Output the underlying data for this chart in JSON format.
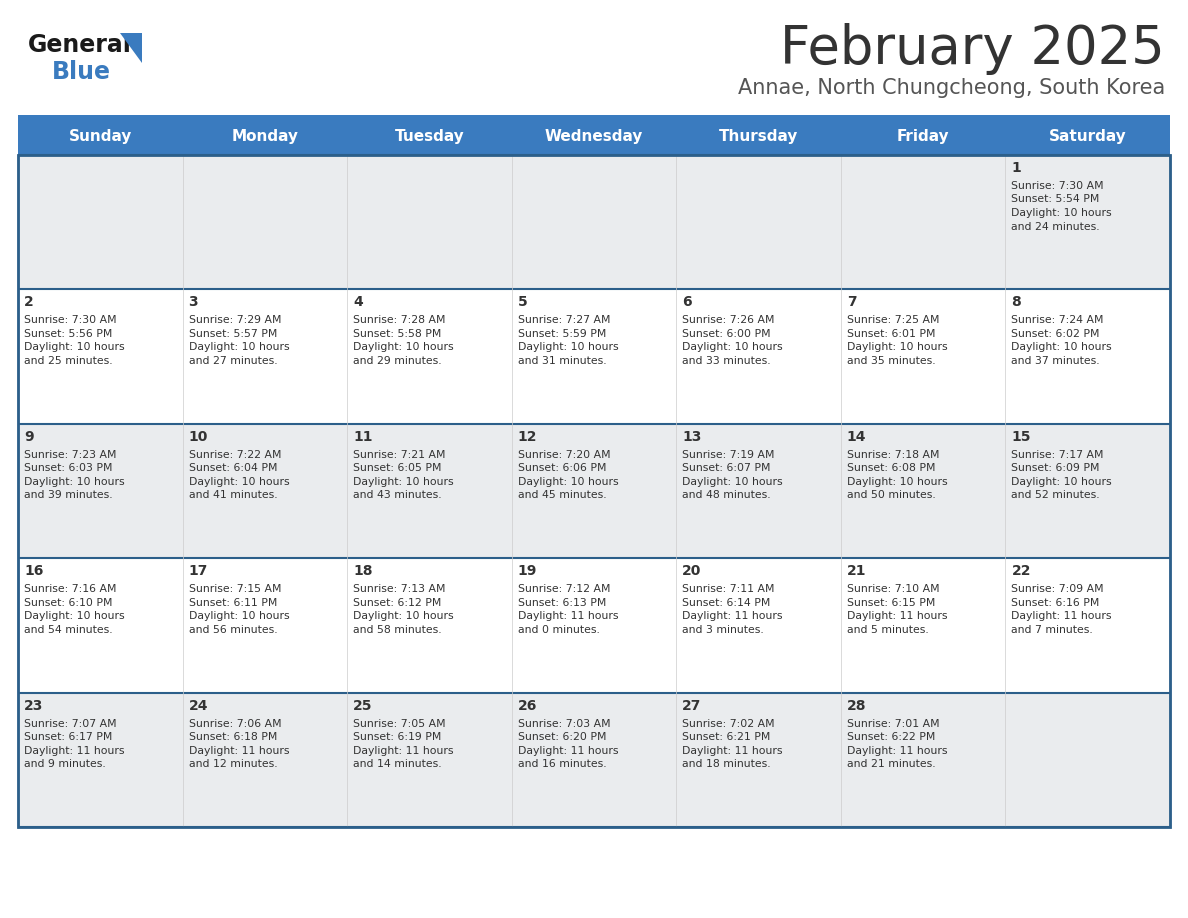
{
  "title": "February 2025",
  "subtitle": "Annae, North Chungcheong, South Korea",
  "header_bg": "#3A7BBF",
  "header_text": "#FFFFFF",
  "cell_bg_odd": "#EAECEE",
  "cell_bg_even": "#FFFFFF",
  "day_headers": [
    "Sunday",
    "Monday",
    "Tuesday",
    "Wednesday",
    "Thursday",
    "Friday",
    "Saturday"
  ],
  "row_border_color": "#2C5F8A",
  "col_border_color": "#CCCCCC",
  "outer_border_color": "#2C5F8A",
  "text_color": "#333333",
  "num_rows": 5,
  "days": [
    {
      "day": 1,
      "col": 6,
      "row": 0,
      "sunrise": "7:30 AM",
      "sunset": "5:54 PM",
      "daylight": "10 hours and 24 minutes."
    },
    {
      "day": 2,
      "col": 0,
      "row": 1,
      "sunrise": "7:30 AM",
      "sunset": "5:56 PM",
      "daylight": "10 hours and 25 minutes."
    },
    {
      "day": 3,
      "col": 1,
      "row": 1,
      "sunrise": "7:29 AM",
      "sunset": "5:57 PM",
      "daylight": "10 hours and 27 minutes."
    },
    {
      "day": 4,
      "col": 2,
      "row": 1,
      "sunrise": "7:28 AM",
      "sunset": "5:58 PM",
      "daylight": "10 hours and 29 minutes."
    },
    {
      "day": 5,
      "col": 3,
      "row": 1,
      "sunrise": "7:27 AM",
      "sunset": "5:59 PM",
      "daylight": "10 hours and 31 minutes."
    },
    {
      "day": 6,
      "col": 4,
      "row": 1,
      "sunrise": "7:26 AM",
      "sunset": "6:00 PM",
      "daylight": "10 hours and 33 minutes."
    },
    {
      "day": 7,
      "col": 5,
      "row": 1,
      "sunrise": "7:25 AM",
      "sunset": "6:01 PM",
      "daylight": "10 hours and 35 minutes."
    },
    {
      "day": 8,
      "col": 6,
      "row": 1,
      "sunrise": "7:24 AM",
      "sunset": "6:02 PM",
      "daylight": "10 hours and 37 minutes."
    },
    {
      "day": 9,
      "col": 0,
      "row": 2,
      "sunrise": "7:23 AM",
      "sunset": "6:03 PM",
      "daylight": "10 hours and 39 minutes."
    },
    {
      "day": 10,
      "col": 1,
      "row": 2,
      "sunrise": "7:22 AM",
      "sunset": "6:04 PM",
      "daylight": "10 hours and 41 minutes."
    },
    {
      "day": 11,
      "col": 2,
      "row": 2,
      "sunrise": "7:21 AM",
      "sunset": "6:05 PM",
      "daylight": "10 hours and 43 minutes."
    },
    {
      "day": 12,
      "col": 3,
      "row": 2,
      "sunrise": "7:20 AM",
      "sunset": "6:06 PM",
      "daylight": "10 hours and 45 minutes."
    },
    {
      "day": 13,
      "col": 4,
      "row": 2,
      "sunrise": "7:19 AM",
      "sunset": "6:07 PM",
      "daylight": "10 hours and 48 minutes."
    },
    {
      "day": 14,
      "col": 5,
      "row": 2,
      "sunrise": "7:18 AM",
      "sunset": "6:08 PM",
      "daylight": "10 hours and 50 minutes."
    },
    {
      "day": 15,
      "col": 6,
      "row": 2,
      "sunrise": "7:17 AM",
      "sunset": "6:09 PM",
      "daylight": "10 hours and 52 minutes."
    },
    {
      "day": 16,
      "col": 0,
      "row": 3,
      "sunrise": "7:16 AM",
      "sunset": "6:10 PM",
      "daylight": "10 hours and 54 minutes."
    },
    {
      "day": 17,
      "col": 1,
      "row": 3,
      "sunrise": "7:15 AM",
      "sunset": "6:11 PM",
      "daylight": "10 hours and 56 minutes."
    },
    {
      "day": 18,
      "col": 2,
      "row": 3,
      "sunrise": "7:13 AM",
      "sunset": "6:12 PM",
      "daylight": "10 hours and 58 minutes."
    },
    {
      "day": 19,
      "col": 3,
      "row": 3,
      "sunrise": "7:12 AM",
      "sunset": "6:13 PM",
      "daylight": "11 hours and 0 minutes."
    },
    {
      "day": 20,
      "col": 4,
      "row": 3,
      "sunrise": "7:11 AM",
      "sunset": "6:14 PM",
      "daylight": "11 hours and 3 minutes."
    },
    {
      "day": 21,
      "col": 5,
      "row": 3,
      "sunrise": "7:10 AM",
      "sunset": "6:15 PM",
      "daylight": "11 hours and 5 minutes."
    },
    {
      "day": 22,
      "col": 6,
      "row": 3,
      "sunrise": "7:09 AM",
      "sunset": "6:16 PM",
      "daylight": "11 hours and 7 minutes."
    },
    {
      "day": 23,
      "col": 0,
      "row": 4,
      "sunrise": "7:07 AM",
      "sunset": "6:17 PM",
      "daylight": "11 hours and 9 minutes."
    },
    {
      "day": 24,
      "col": 1,
      "row": 4,
      "sunrise": "7:06 AM",
      "sunset": "6:18 PM",
      "daylight": "11 hours and 12 minutes."
    },
    {
      "day": 25,
      "col": 2,
      "row": 4,
      "sunrise": "7:05 AM",
      "sunset": "6:19 PM",
      "daylight": "11 hours and 14 minutes."
    },
    {
      "day": 26,
      "col": 3,
      "row": 4,
      "sunrise": "7:03 AM",
      "sunset": "6:20 PM",
      "daylight": "11 hours and 16 minutes."
    },
    {
      "day": 27,
      "col": 4,
      "row": 4,
      "sunrise": "7:02 AM",
      "sunset": "6:21 PM",
      "daylight": "11 hours and 18 minutes."
    },
    {
      "day": 28,
      "col": 5,
      "row": 4,
      "sunrise": "7:01 AM",
      "sunset": "6:22 PM",
      "daylight": "11 hours and 21 minutes."
    }
  ]
}
